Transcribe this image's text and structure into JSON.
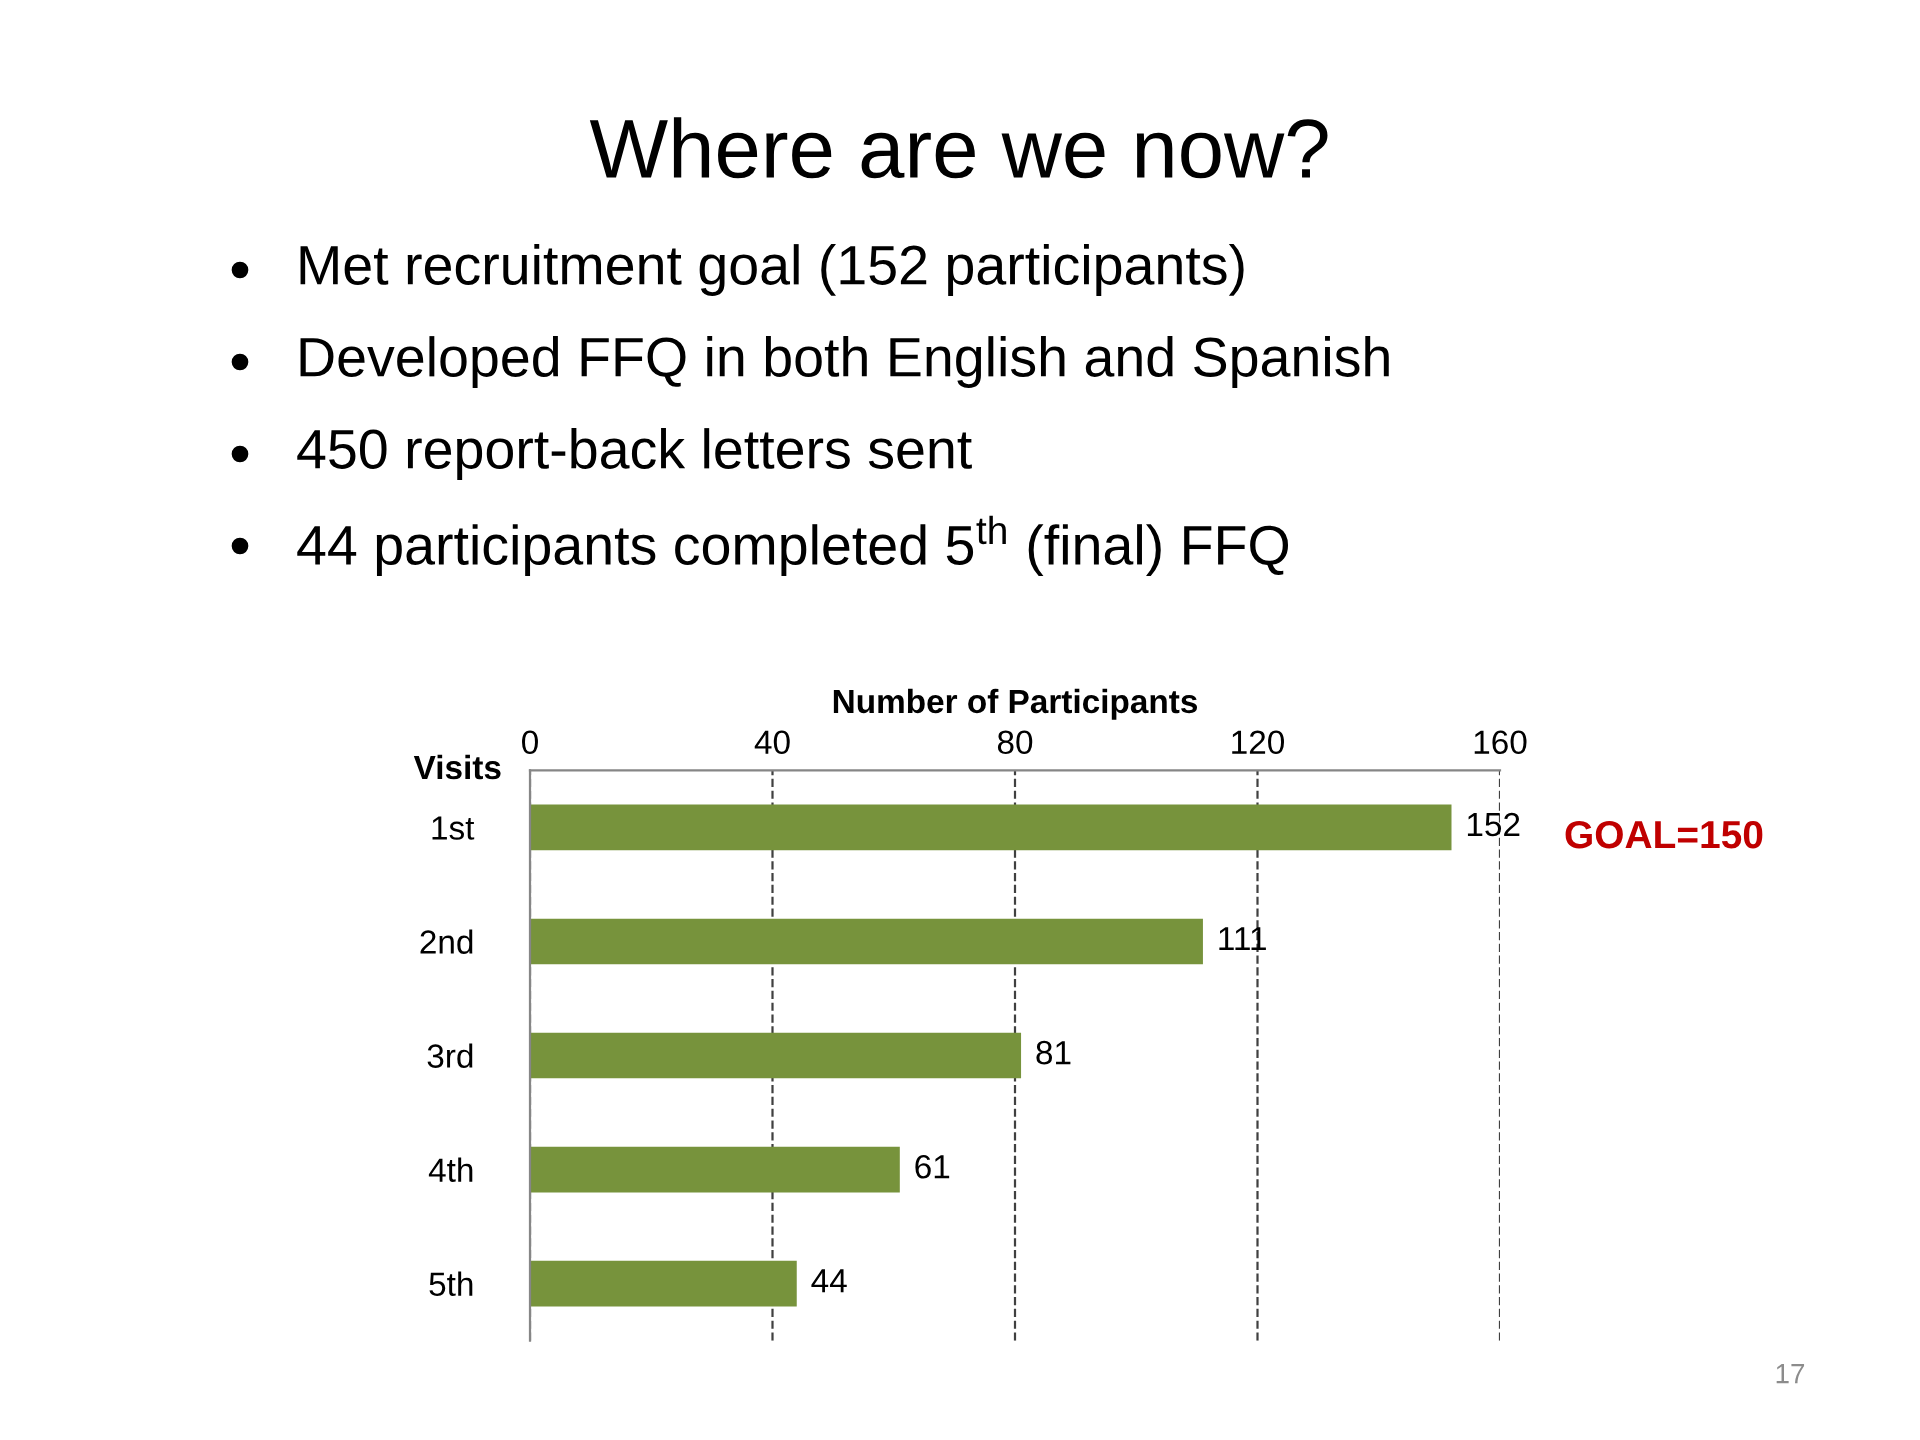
{
  "chart_data": {
    "type": "bar",
    "orientation": "horizontal",
    "title": "Where are we now?",
    "annotations": [
      "Met recruitment goal (152 participants)",
      "Developed FFQ in both English and Spanish",
      "450 report-back letters sent",
      "44 participants completed 5$^{th}$ (final) FFQ",
      "GOAL=150",
      "17"
    ],
    "xlabel": "Number of Participants",
    "ylabel": "Visits",
    "categories": [
      "1st",
      "2nd",
      "3rd",
      "4th",
      "5th"
    ],
    "values": [
      152,
      111,
      81,
      61,
      44
    ],
    "color": "#77933c",
    "xlim": [
      0,
      160
    ],
    "xticks": [
      0,
      40,
      80,
      120,
      160
    ],
    "grid": "x",
    "data_labels": true
  }
}
